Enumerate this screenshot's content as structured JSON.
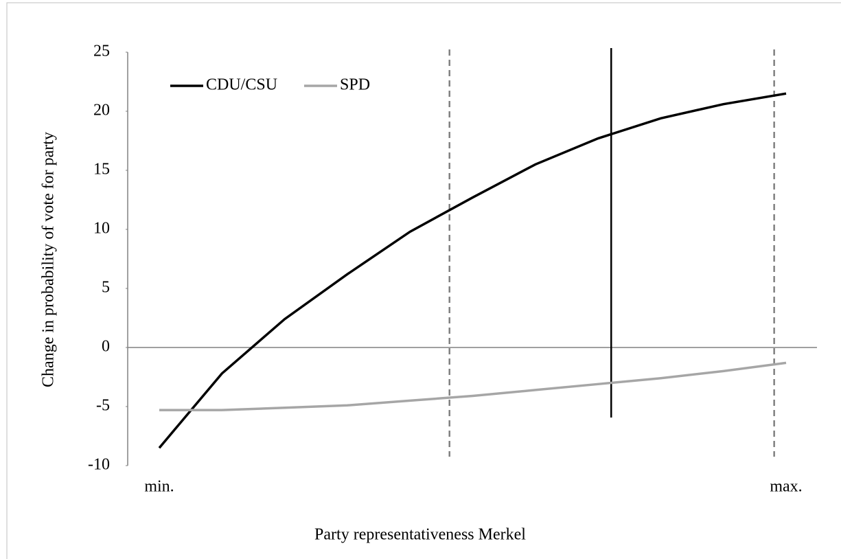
{
  "chart_data": {
    "type": "line",
    "x_label": "Party representativeness Merkel",
    "y_label": "Change in probability of vote for party",
    "categories": [
      "min.",
      null,
      null,
      null,
      null,
      null,
      null,
      null,
      null,
      null,
      "max."
    ],
    "series": [
      {
        "name": "CDU/CSU",
        "color": "#000000",
        "values": [
          -8.5,
          -2.2,
          2.4,
          6.2,
          9.8,
          12.7,
          15.5,
          17.7,
          19.4,
          20.6,
          21.5
        ]
      },
      {
        "name": "SPD",
        "color": "#a6a6a6",
        "values": [
          -5.3,
          -5.3,
          -5.1,
          -4.9,
          -4.5,
          -4.1,
          -3.6,
          -3.1,
          -2.6,
          -2.0,
          -1.3
        ]
      }
    ],
    "ylim": [
      -10,
      25
    ],
    "yticks": [
      -10,
      -5,
      0,
      5,
      10,
      15,
      20,
      25
    ],
    "vlines": [
      {
        "x": 4.63,
        "style": "dashed"
      },
      {
        "x": 7.21,
        "style": "solid"
      },
      {
        "x": 9.81,
        "style": "dashed"
      }
    ],
    "grid": false,
    "legend": "top-left"
  }
}
